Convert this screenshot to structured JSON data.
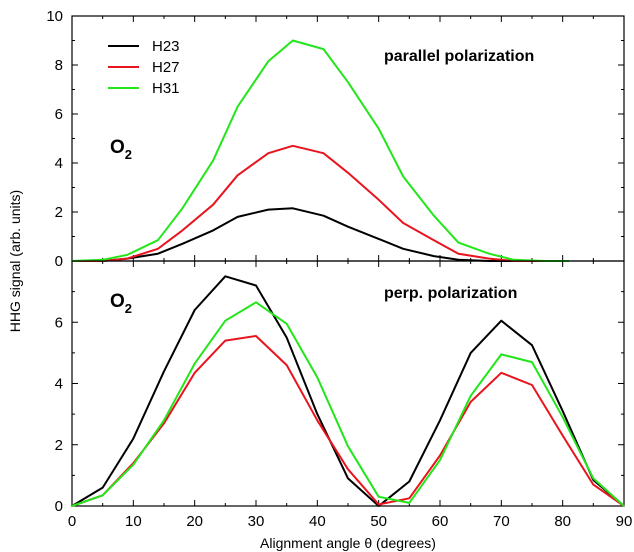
{
  "chart_data": {
    "type": "line",
    "xlabel": "Alignment angle θ (degrees)",
    "ylabel": "HHG signal (arb. units)",
    "xlim": [
      0,
      90
    ],
    "x_ticks": [
      0,
      10,
      20,
      30,
      40,
      50,
      60,
      70,
      80,
      90
    ],
    "legend": {
      "placement": "top-left",
      "entries": [
        "H23",
        "H27",
        "H31"
      ]
    },
    "colors": {
      "H23": "#000000",
      "H27": "#e8141e",
      "H31": "#22e61a"
    },
    "panels": [
      {
        "id": "top",
        "annotation": "parallel polarization",
        "molecule": {
          "base": "O",
          "subscript": "2"
        },
        "ylim": [
          0,
          10
        ],
        "y_ticks": [
          0,
          2,
          4,
          6,
          8,
          10
        ],
        "series": [
          {
            "name": "H23",
            "x": [
              0,
              5,
              9,
              14,
              18,
              23,
              27,
              32,
              36,
              41,
              45,
              50,
              54,
              59,
              63,
              68,
              72,
              77,
              81
            ],
            "values": [
              0,
              0,
              0.1,
              0.3,
              0.7,
              1.25,
              1.8,
              2.1,
              2.15,
              1.85,
              1.4,
              0.9,
              0.5,
              0.2,
              0.05,
              0,
              0,
              0,
              0
            ]
          },
          {
            "name": "H27",
            "x": [
              0,
              5,
              9,
              14,
              18,
              23,
              27,
              32,
              36,
              41,
              45,
              50,
              54,
              59,
              63,
              68,
              72,
              77,
              81
            ],
            "values": [
              0,
              0,
              0.1,
              0.5,
              1.25,
              2.3,
              3.5,
              4.4,
              4.7,
              4.4,
              3.6,
              2.5,
              1.55,
              0.85,
              0.3,
              0.1,
              0,
              0,
              0
            ]
          },
          {
            "name": "H31",
            "x": [
              0,
              5,
              9,
              14,
              18,
              23,
              27,
              32,
              36,
              41,
              45,
              50,
              54,
              59,
              63,
              68,
              72,
              77,
              81
            ],
            "values": [
              0,
              0.05,
              0.25,
              0.85,
              2.15,
              4.1,
              6.3,
              8.15,
              9.0,
              8.65,
              7.3,
              5.4,
              3.45,
              1.85,
              0.75,
              0.3,
              0.05,
              0,
              0
            ]
          }
        ]
      },
      {
        "id": "bottom",
        "annotation": "perp. polarization",
        "molecule": {
          "base": "O",
          "subscript": "2"
        },
        "ylim": [
          0,
          8
        ],
        "y_ticks": [
          0,
          2,
          4,
          6
        ],
        "series": [
          {
            "name": "H23",
            "x": [
              0,
              5,
              10,
              15,
              20,
              25,
              30,
              35,
              40,
              45,
              50,
              55,
              60,
              65,
              70,
              75,
              80,
              85,
              90
            ],
            "values": [
              0,
              0.6,
              2.2,
              4.4,
              6.4,
              7.5,
              7.2,
              5.5,
              3.0,
              0.9,
              0,
              0.8,
              2.8,
              5.0,
              6.05,
              5.25,
              3.1,
              0.85,
              0
            ]
          },
          {
            "name": "H27",
            "x": [
              0,
              5,
              10,
              15,
              20,
              25,
              30,
              35,
              40,
              45,
              50,
              55,
              60,
              65,
              70,
              75,
              80,
              85,
              90
            ],
            "values": [
              0,
              0.35,
              1.4,
              2.7,
              4.35,
              5.4,
              5.55,
              4.6,
              2.8,
              1.2,
              0.05,
              0.25,
              1.65,
              3.4,
              4.35,
              3.95,
              2.3,
              0.7,
              0
            ]
          },
          {
            "name": "H31",
            "x": [
              0,
              5,
              10,
              15,
              20,
              25,
              30,
              35,
              40,
              45,
              50,
              55,
              60,
              65,
              70,
              75,
              80,
              85,
              90
            ],
            "values": [
              0,
              0.35,
              1.35,
              2.8,
              4.65,
              6.05,
              6.65,
              5.95,
              4.2,
              1.95,
              0.3,
              0.1,
              1.5,
              3.6,
              4.95,
              4.7,
              2.9,
              0.9,
              0
            ]
          }
        ]
      }
    ]
  }
}
